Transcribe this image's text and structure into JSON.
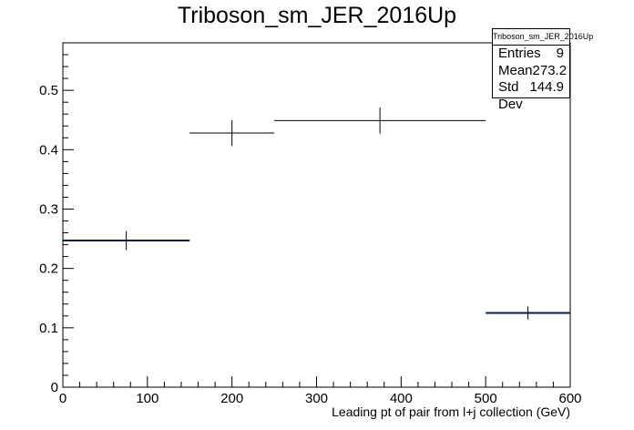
{
  "chart_data": {
    "type": "histogram",
    "title": "Triboson_sm_JER_2016Up",
    "xlabel": "Leading pt of pair from l+j collection (GeV)",
    "ylabel": "",
    "xlim": [
      0,
      600
    ],
    "ylim": [
      0,
      0.58
    ],
    "x_ticks": [
      0,
      100,
      200,
      300,
      400,
      500,
      600
    ],
    "y_ticks": [
      0,
      0.1,
      0.2,
      0.3,
      0.4,
      0.5
    ],
    "y_tick_labels": [
      "0",
      "0.1",
      "0.2",
      "0.3",
      "0.4",
      "0.5"
    ],
    "grid": false,
    "bins": [
      {
        "x_low": 0,
        "x_high": 150,
        "value": 0.247,
        "error": 0.016,
        "color": "#001a66"
      },
      {
        "x_low": 150,
        "x_high": 250,
        "value": 0.428,
        "error": 0.022,
        "color": "#000000"
      },
      {
        "x_low": 250,
        "x_high": 500,
        "value": 0.449,
        "error": 0.022,
        "color": "#000000"
      },
      {
        "x_low": 500,
        "x_high": 600,
        "value": 0.125,
        "error": 0.011,
        "color": "#001a66"
      }
    ],
    "stats": {
      "name": "Triboson_sm_JER_2016Up",
      "entries_label": "Entries",
      "entries": "9",
      "mean_label": "Mean",
      "mean": "273.2",
      "stddev_label": "Std Dev",
      "stddev": "144.9"
    }
  }
}
